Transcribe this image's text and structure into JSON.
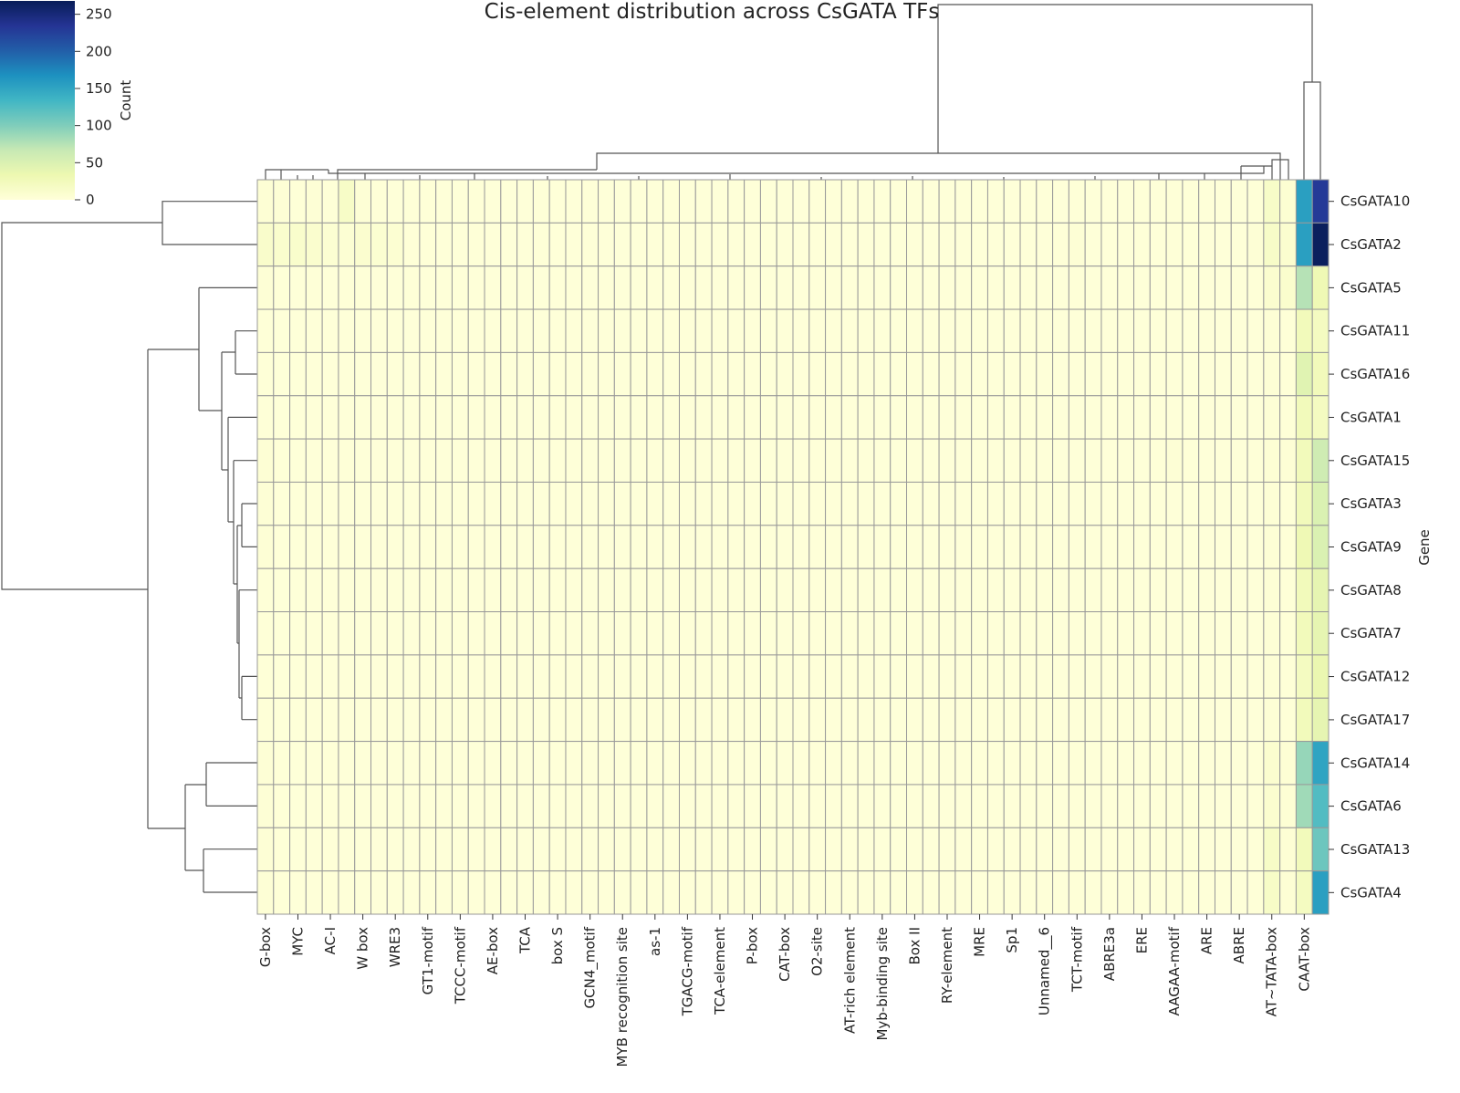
{
  "chart_data": {
    "type": "heatmap",
    "title": "Cis-element distribution across CsGATA TFs",
    "y_label": "Gene",
    "colorbar_label": "Count",
    "colormap": "YlGnBu",
    "clim": [
      0,
      268
    ],
    "colorbar_ticks": [
      0,
      50,
      100,
      150,
      200,
      250
    ],
    "x_categories": [
      "G-box",
      null,
      "MYC",
      null,
      "AC-I",
      null,
      "W box",
      null,
      "WRE3",
      null,
      "GT1-motif",
      null,
      "TCCC-motif",
      null,
      "AE-box",
      null,
      "TCA",
      null,
      "box S",
      null,
      "GCN4_motif",
      null,
      "MYB recognition site",
      null,
      "as-1",
      null,
      "TGACG-motif",
      null,
      "TCA-element",
      null,
      "P-box",
      null,
      "CAT-box",
      null,
      "O2-site",
      null,
      "AT-rich element",
      null,
      "Myb-binding site",
      null,
      "Box II",
      null,
      "RY-element",
      null,
      "MRE",
      null,
      "Sp1",
      null,
      "Unnamed__6",
      null,
      "TCT-motif",
      null,
      "ABRE3a",
      null,
      "ERE",
      null,
      "AAGAA-motif",
      null,
      "ARE",
      null,
      "ABRE",
      null,
      "AT~TATA-box",
      null,
      "CAAT-box",
      null
    ],
    "y_categories": [
      "CsGATA10",
      "CsGATA2",
      "CsGATA5",
      "CsGATA11",
      "CsGATA16",
      "CsGATA1",
      "CsGATA15",
      "CsGATA3",
      "CsGATA9",
      "CsGATA8",
      "CsGATA7",
      "CsGATA12",
      "CsGATA17",
      "CsGATA14",
      "CsGATA6",
      "CsGATA13",
      "CsGATA4"
    ],
    "values": [
      [
        4,
        3,
        2,
        3,
        2,
        15,
        3,
        2,
        1,
        2,
        2,
        1,
        1,
        2,
        1,
        1,
        1,
        2,
        1,
        1,
        2,
        1,
        1,
        1,
        1,
        2,
        1,
        1,
        1,
        1,
        1,
        1,
        1,
        1,
        1,
        1,
        1,
        1,
        1,
        1,
        1,
        1,
        1,
        1,
        1,
        1,
        1,
        1,
        1,
        1,
        2,
        1,
        1,
        1,
        2,
        1,
        2,
        2,
        1,
        1,
        1,
        2,
        14,
        6,
        155,
        230
      ],
      [
        12,
        10,
        11,
        9,
        6,
        5,
        8,
        7,
        6,
        2,
        2,
        1,
        1,
        2,
        1,
        1,
        1,
        2,
        1,
        1,
        2,
        1,
        1,
        1,
        1,
        2,
        1,
        1,
        1,
        1,
        1,
        1,
        1,
        1,
        1,
        1,
        1,
        1,
        1,
        1,
        1,
        1,
        1,
        1,
        1,
        1,
        1,
        1,
        1,
        2,
        3,
        1,
        1,
        1,
        2,
        1,
        2,
        2,
        1,
        1,
        1,
        3,
        14,
        8,
        155,
        265
      ],
      [
        3,
        2,
        1,
        2,
        1,
        2,
        2,
        1,
        1,
        2,
        1,
        1,
        1,
        1,
        1,
        1,
        1,
        1,
        1,
        1,
        1,
        1,
        1,
        1,
        1,
        1,
        1,
        1,
        1,
        1,
        1,
        1,
        1,
        1,
        1,
        1,
        1,
        1,
        1,
        1,
        1,
        1,
        1,
        1,
        1,
        1,
        1,
        1,
        1,
        1,
        2,
        1,
        1,
        1,
        1,
        1,
        1,
        2,
        1,
        1,
        1,
        2,
        8,
        10,
        75,
        30
      ],
      [
        2,
        1,
        1,
        1,
        1,
        1,
        1,
        1,
        1,
        1,
        1,
        1,
        1,
        1,
        1,
        1,
        1,
        1,
        1,
        1,
        1,
        1,
        1,
        1,
        1,
        1,
        1,
        1,
        1,
        1,
        1,
        1,
        1,
        1,
        1,
        1,
        1,
        1,
        1,
        1,
        1,
        1,
        1,
        1,
        1,
        1,
        1,
        1,
        1,
        1,
        1,
        1,
        1,
        1,
        1,
        1,
        1,
        1,
        1,
        1,
        1,
        1,
        3,
        2,
        25,
        20
      ],
      [
        2,
        1,
        1,
        1,
        1,
        1,
        1,
        1,
        1,
        1,
        1,
        1,
        1,
        1,
        1,
        1,
        1,
        1,
        1,
        1,
        1,
        1,
        1,
        1,
        1,
        1,
        1,
        1,
        1,
        1,
        1,
        1,
        1,
        1,
        1,
        1,
        1,
        1,
        1,
        1,
        1,
        1,
        1,
        1,
        1,
        1,
        1,
        1,
        1,
        1,
        1,
        1,
        1,
        1,
        1,
        1,
        1,
        1,
        1,
        1,
        1,
        1,
        3,
        2,
        45,
        25
      ],
      [
        2,
        1,
        1,
        1,
        1,
        1,
        1,
        1,
        1,
        1,
        1,
        1,
        1,
        1,
        1,
        1,
        1,
        1,
        1,
        1,
        1,
        1,
        1,
        1,
        1,
        1,
        1,
        1,
        1,
        1,
        1,
        1,
        1,
        1,
        1,
        1,
        1,
        1,
        1,
        1,
        1,
        1,
        1,
        1,
        1,
        1,
        1,
        1,
        1,
        1,
        1,
        1,
        1,
        1,
        1,
        1,
        1,
        1,
        1,
        1,
        1,
        1,
        3,
        2,
        25,
        20
      ],
      [
        4,
        2,
        1,
        1,
        1,
        2,
        1,
        1,
        1,
        1,
        1,
        1,
        1,
        1,
        1,
        1,
        1,
        1,
        1,
        1,
        1,
        1,
        1,
        1,
        1,
        1,
        1,
        1,
        1,
        1,
        1,
        1,
        1,
        1,
        1,
        1,
        1,
        1,
        1,
        1,
        1,
        1,
        1,
        1,
        1,
        1,
        1,
        1,
        1,
        1,
        1,
        1,
        1,
        1,
        1,
        2,
        3,
        2,
        1,
        1,
        1,
        2,
        4,
        3,
        25,
        60
      ],
      [
        3,
        1,
        1,
        1,
        1,
        1,
        1,
        1,
        1,
        1,
        1,
        1,
        1,
        1,
        1,
        1,
        1,
        1,
        1,
        1,
        1,
        1,
        1,
        1,
        1,
        1,
        1,
        1,
        1,
        1,
        1,
        1,
        1,
        1,
        1,
        1,
        1,
        1,
        1,
        1,
        1,
        1,
        1,
        1,
        1,
        1,
        1,
        1,
        1,
        1,
        1,
        1,
        1,
        1,
        1,
        1,
        1,
        1,
        1,
        1,
        1,
        1,
        3,
        2,
        25,
        50
      ],
      [
        3,
        1,
        1,
        1,
        1,
        1,
        1,
        1,
        1,
        1,
        1,
        1,
        1,
        1,
        1,
        1,
        1,
        1,
        1,
        1,
        1,
        1,
        1,
        1,
        1,
        1,
        1,
        1,
        1,
        1,
        1,
        1,
        1,
        1,
        1,
        1,
        1,
        1,
        1,
        1,
        1,
        1,
        1,
        1,
        1,
        1,
        1,
        1,
        1,
        1,
        1,
        1,
        1,
        1,
        1,
        1,
        1,
        1,
        1,
        1,
        1,
        1,
        3,
        2,
        30,
        50
      ],
      [
        2,
        1,
        1,
        1,
        1,
        1,
        1,
        1,
        1,
        1,
        1,
        1,
        1,
        1,
        1,
        1,
        1,
        1,
        1,
        1,
        1,
        1,
        1,
        1,
        1,
        1,
        1,
        1,
        1,
        1,
        1,
        1,
        1,
        1,
        1,
        1,
        1,
        1,
        1,
        1,
        1,
        1,
        1,
        1,
        1,
        1,
        1,
        1,
        1,
        1,
        1,
        1,
        1,
        1,
        1,
        1,
        1,
        1,
        1,
        1,
        1,
        1,
        3,
        2,
        25,
        40
      ],
      [
        2,
        1,
        1,
        1,
        1,
        1,
        1,
        1,
        1,
        1,
        1,
        1,
        1,
        1,
        1,
        1,
        1,
        1,
        1,
        1,
        1,
        1,
        1,
        1,
        1,
        1,
        1,
        1,
        1,
        1,
        1,
        1,
        1,
        1,
        1,
        1,
        1,
        1,
        1,
        1,
        1,
        1,
        1,
        1,
        1,
        1,
        1,
        1,
        1,
        1,
        1,
        1,
        1,
        1,
        1,
        1,
        1,
        1,
        1,
        1,
        1,
        1,
        3,
        2,
        25,
        40
      ],
      [
        2,
        1,
        1,
        1,
        1,
        1,
        1,
        1,
        1,
        1,
        1,
        1,
        1,
        1,
        1,
        1,
        1,
        1,
        1,
        1,
        1,
        1,
        1,
        1,
        1,
        1,
        1,
        1,
        1,
        1,
        1,
        1,
        1,
        1,
        1,
        1,
        1,
        1,
        1,
        1,
        1,
        1,
        1,
        1,
        1,
        1,
        1,
        1,
        1,
        1,
        1,
        1,
        1,
        1,
        1,
        1,
        1,
        1,
        1,
        1,
        1,
        1,
        3,
        2,
        20,
        35
      ],
      [
        2,
        1,
        1,
        1,
        1,
        1,
        1,
        1,
        1,
        1,
        1,
        1,
        1,
        1,
        1,
        1,
        1,
        1,
        1,
        1,
        1,
        1,
        1,
        1,
        1,
        1,
        1,
        1,
        1,
        1,
        1,
        1,
        1,
        1,
        1,
        1,
        1,
        1,
        1,
        1,
        1,
        1,
        1,
        1,
        1,
        1,
        1,
        1,
        1,
        1,
        1,
        1,
        1,
        1,
        1,
        1,
        1,
        1,
        1,
        1,
        1,
        1,
        3,
        2,
        25,
        40
      ],
      [
        3,
        2,
        1,
        1,
        2,
        1,
        1,
        1,
        1,
        1,
        1,
        1,
        1,
        1,
        1,
        1,
        1,
        1,
        1,
        1,
        1,
        1,
        1,
        1,
        1,
        1,
        1,
        1,
        1,
        1,
        1,
        1,
        1,
        1,
        1,
        1,
        1,
        1,
        1,
        1,
        1,
        1,
        1,
        1,
        1,
        1,
        1,
        1,
        1,
        1,
        2,
        1,
        1,
        1,
        1,
        1,
        1,
        2,
        1,
        1,
        1,
        2,
        8,
        4,
        90,
        150
      ],
      [
        3,
        2,
        1,
        1,
        2,
        1,
        1,
        1,
        1,
        1,
        1,
        1,
        1,
        1,
        1,
        1,
        1,
        1,
        1,
        1,
        1,
        1,
        1,
        1,
        1,
        1,
        1,
        1,
        1,
        1,
        1,
        1,
        1,
        1,
        1,
        1,
        1,
        1,
        1,
        1,
        1,
        1,
        1,
        1,
        1,
        1,
        1,
        1,
        1,
        1,
        2,
        1,
        1,
        1,
        1,
        1,
        1,
        2,
        1,
        1,
        1,
        2,
        8,
        4,
        85,
        125
      ],
      [
        3,
        2,
        1,
        1,
        2,
        1,
        1,
        1,
        1,
        1,
        1,
        1,
        1,
        1,
        1,
        1,
        1,
        1,
        1,
        1,
        1,
        1,
        1,
        1,
        1,
        1,
        1,
        1,
        1,
        1,
        1,
        1,
        1,
        1,
        1,
        1,
        1,
        1,
        1,
        1,
        1,
        1,
        1,
        1,
        1,
        1,
        1,
        1,
        1,
        1,
        2,
        1,
        1,
        1,
        1,
        1,
        1,
        2,
        1,
        1,
        1,
        2,
        15,
        4,
        25,
        110
      ],
      [
        3,
        2,
        1,
        1,
        2,
        1,
        1,
        1,
        1,
        1,
        1,
        1,
        1,
        1,
        1,
        1,
        1,
        1,
        1,
        1,
        1,
        1,
        1,
        1,
        1,
        1,
        1,
        1,
        1,
        1,
        1,
        1,
        1,
        1,
        1,
        1,
        1,
        1,
        1,
        1,
        1,
        1,
        1,
        1,
        1,
        1,
        1,
        1,
        1,
        1,
        2,
        1,
        1,
        1,
        1,
        1,
        1,
        2,
        1,
        1,
        1,
        2,
        15,
        4,
        20,
        155
      ]
    ]
  }
}
